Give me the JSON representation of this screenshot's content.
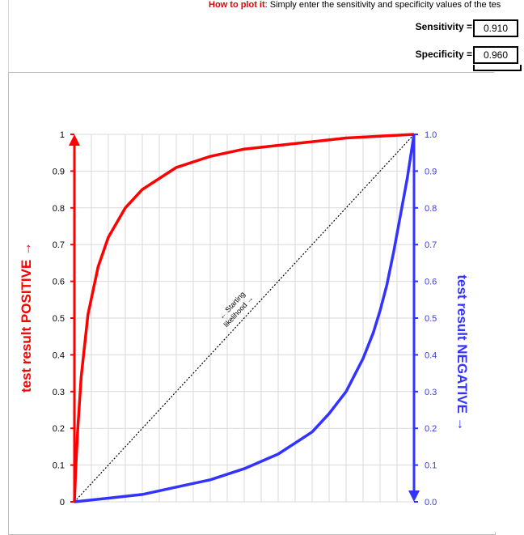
{
  "instructions": {
    "highlight": "How to plot it",
    "text": ": Simply enter the sensitivity and specificity values of the tes"
  },
  "inputs": {
    "sensitivity_label": "Sensitivity =",
    "sensitivity_value": "0.910",
    "specificity_label": "Specificity =",
    "specificity_value": "0.960"
  },
  "colors": {
    "positive": "#ff0000",
    "negative": "#3333ff",
    "diagonal": "#000000",
    "grid": "#d9d9d9"
  },
  "chart_data": {
    "type": "line",
    "left_axis_label": "test result POSITIVE →",
    "right_axis_label": "test result NEGATIVE →",
    "diagonal_label_line1": "← Starting",
    "diagonal_label_line2": "likelihood →",
    "xlim": [
      0,
      1
    ],
    "ylim": [
      0,
      1
    ],
    "left_ticks": [
      "0",
      "0.1",
      "0.2",
      "0.3",
      "0.4",
      "0.5",
      "0.6",
      "0.7",
      "0.8",
      "0.9",
      "1"
    ],
    "right_ticks": [
      "0.0",
      "0.1",
      "0.2",
      "0.3",
      "0.4",
      "0.5",
      "0.6",
      "0.7",
      "0.8",
      "0.9",
      "1.0"
    ],
    "grid": true,
    "series": [
      {
        "key": "positive",
        "x": [
          0,
          0.005,
          0.01,
          0.02,
          0.04,
          0.07,
          0.1,
          0.15,
          0.2,
          0.25,
          0.3,
          0.4,
          0.5,
          0.6,
          0.7,
          0.8,
          0.9,
          1.0
        ],
        "y": [
          0,
          0.11,
          0.2,
          0.34,
          0.51,
          0.64,
          0.72,
          0.8,
          0.85,
          0.88,
          0.91,
          0.94,
          0.96,
          0.97,
          0.98,
          0.99,
          0.995,
          1.0
        ]
      },
      {
        "key": "negative",
        "x": [
          0,
          0.1,
          0.2,
          0.3,
          0.4,
          0.5,
          0.6,
          0.7,
          0.75,
          0.8,
          0.85,
          0.88,
          0.9,
          0.92,
          0.94,
          0.96,
          0.98,
          0.99,
          1.0
        ],
        "y": [
          0,
          0.01,
          0.02,
          0.04,
          0.06,
          0.09,
          0.13,
          0.19,
          0.24,
          0.3,
          0.39,
          0.46,
          0.52,
          0.59,
          0.68,
          0.78,
          0.88,
          0.94,
          1.0
        ]
      },
      {
        "key": "diagonal",
        "x": [
          0,
          1
        ],
        "y": [
          0,
          1
        ]
      }
    ]
  }
}
